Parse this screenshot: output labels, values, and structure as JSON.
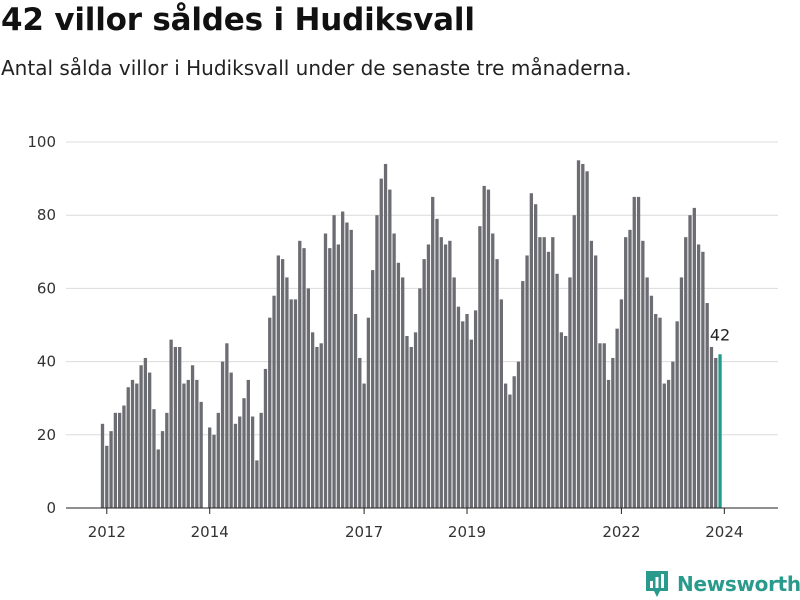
{
  "header": {
    "title": "42 villor såldes i Hudiksvall",
    "subtitle": "Antal sålda villor i Hudiksvall under de senaste tre månaderna."
  },
  "brand": {
    "name": "Newsworthy",
    "icon": "newsworthy-logo-icon",
    "color": "#2a9a8d"
  },
  "colors": {
    "bar": "#6c6c73",
    "highlight": "#229a8d",
    "grid": "#dcdcdc"
  },
  "chart_data": {
    "type": "bar",
    "title": "42 villor såldes i Hudiksvall",
    "subtitle": "Antal sålda villor i Hudiksvall under de senaste tre månaderna.",
    "xlabel": "",
    "ylabel": "",
    "ylim": [
      0,
      100
    ],
    "yticks": [
      0,
      20,
      40,
      60,
      80,
      100
    ],
    "xticks": [
      "2012",
      "2014",
      "2017",
      "2019",
      "2022",
      "2024"
    ],
    "grid": true,
    "legend": "none",
    "start_month": "2011-12",
    "highlight_last": true,
    "last_label": "42",
    "values": [
      23,
      17,
      21,
      26,
      26,
      28,
      33,
      35,
      34,
      39,
      41,
      37,
      27,
      16,
      21,
      26,
      46,
      44,
      44,
      34,
      35,
      39,
      35,
      29,
      0,
      22,
      20,
      26,
      40,
      45,
      37,
      23,
      25,
      30,
      35,
      25,
      13,
      26,
      38,
      52,
      58,
      69,
      68,
      63,
      57,
      57,
      73,
      71,
      60,
      48,
      44,
      45,
      75,
      71,
      80,
      72,
      81,
      78,
      76,
      53,
      41,
      34,
      52,
      65,
      80,
      90,
      94,
      87,
      75,
      67,
      63,
      47,
      44,
      48,
      60,
      68,
      72,
      85,
      79,
      74,
      72,
      73,
      63,
      55,
      51,
      53,
      46,
      54,
      77,
      88,
      87,
      75,
      68,
      57,
      34,
      31,
      36,
      40,
      62,
      69,
      86,
      83,
      74,
      74,
      70,
      74,
      64,
      48,
      47,
      63,
      80,
      95,
      94,
      92,
      73,
      69,
      45,
      45,
      35,
      41,
      49,
      57,
      74,
      76,
      85,
      85,
      73,
      63,
      58,
      53,
      52,
      34,
      35,
      40,
      51,
      63,
      74,
      80,
      82,
      72,
      70,
      56,
      44,
      41,
      42
    ]
  }
}
